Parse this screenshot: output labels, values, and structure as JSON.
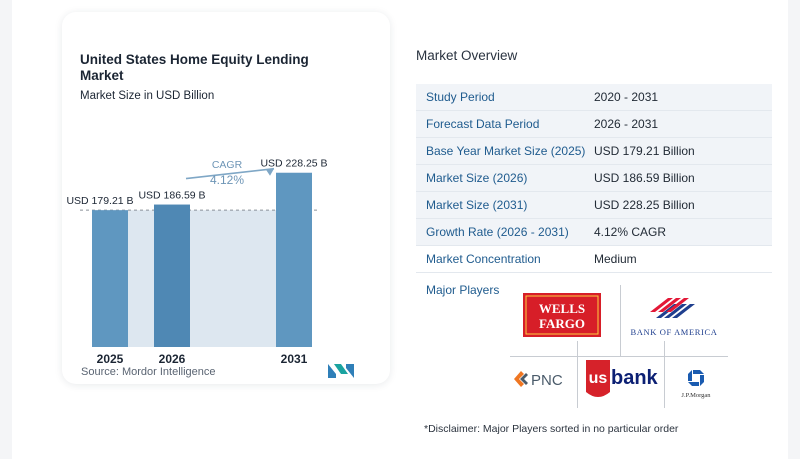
{
  "chart_data": {
    "type": "bar",
    "title": "United States Home Equity Lending Market",
    "subtitle": "Market Size in USD Billion",
    "categories": [
      "2025",
      "2026",
      "2031"
    ],
    "values": [
      179.21,
      186.59,
      228.25
    ],
    "value_labels": [
      "USD 179.21 B",
      "USD 186.59 B",
      "USD 228.25 B"
    ],
    "cagr_label": "CAGR",
    "cagr_value": "4.12%",
    "grid": false,
    "colors": {
      "bar": "#5f97c0",
      "bar_highlight": "#4f88b4",
      "band": "#dde7f0",
      "arrow": "#7fa7c6"
    }
  },
  "source": "Source:  Mordor Intelligence",
  "overview": {
    "title": "Market Overview",
    "rows": [
      {
        "label": "Study Period",
        "value": "2020 - 2031"
      },
      {
        "label": "Forecast Data Period",
        "value": "2026 - 2031"
      },
      {
        "label": "Base Year Market Size (2025)",
        "value": "USD 179.21 Billion"
      },
      {
        "label": "Market Size (2026)",
        "value": "USD 186.59 Billion"
      },
      {
        "label": "Market Size (2031)",
        "value": "USD 228.25 Billion"
      },
      {
        "label": "Growth Rate (2026 - 2031)",
        "value": "4.12% CAGR"
      },
      {
        "label": "Market Concentration",
        "value": "Medium"
      }
    ]
  },
  "players": {
    "label": "Major Players",
    "wells_fargo": [
      "WELLS",
      "FARGO"
    ],
    "bank_of_america": "BANK OF AMERICA",
    "pnc": "PNC",
    "usbank_us": "us",
    "usbank_bank": "bank",
    "jpmorgan": "J.P.Morgan"
  },
  "disclaimer": "*Disclaimer: Major Players sorted in no particular order"
}
